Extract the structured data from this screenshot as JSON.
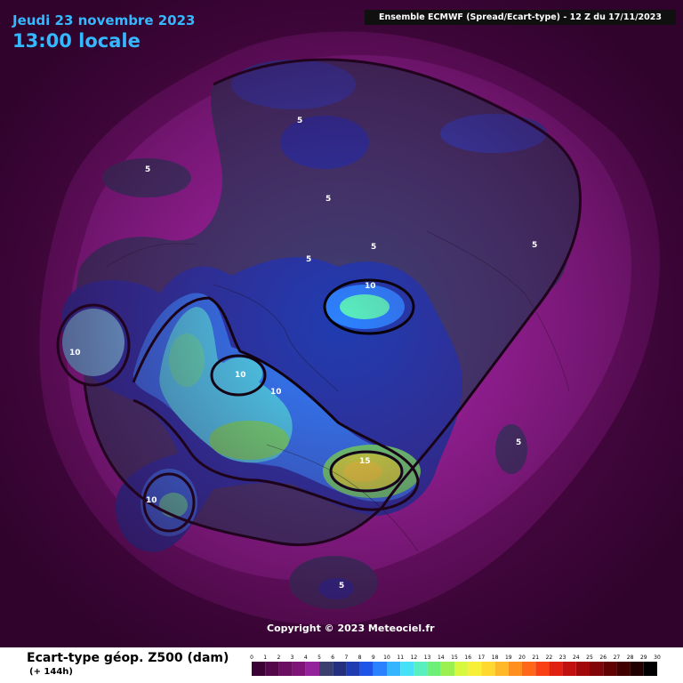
{
  "header": {
    "date": "Jeudi 23 novembre 2023",
    "time": "13:00 locale",
    "source": "Ensemble ECMWF  (Spread/Ecart-type) - 12 Z du 17/11/2023"
  },
  "map": {
    "copyright": "Copyright © 2023 Meteociel.fr",
    "contour_labels": [
      "5",
      "5",
      "5",
      "5",
      "5",
      "5",
      "5",
      "5",
      "10",
      "10",
      "10",
      "10",
      "10",
      "10",
      "15"
    ]
  },
  "footer": {
    "title": "Ecart-type géop. Z500 (dam)",
    "lead_time": "(+ 144h)"
  },
  "scale": {
    "labels": [
      "0",
      "1",
      "2",
      "3",
      "4",
      "5",
      "6",
      "7",
      "8",
      "9",
      "10",
      "11",
      "12",
      "13",
      "14",
      "15",
      "16",
      "17",
      "18",
      "19",
      "20",
      "21",
      "22",
      "23",
      "24",
      "25",
      "26",
      "27",
      "28",
      "29",
      "30"
    ],
    "colors": [
      "#3a0235",
      "#520849",
      "#6a0f62",
      "#7e1478",
      "#94229a",
      "#3a3f6e",
      "#24307e",
      "#1f3cb0",
      "#1e55e8",
      "#2b82ff",
      "#34b6ff",
      "#46e0f8",
      "#58f0c0",
      "#6ef078",
      "#9cf050",
      "#d6f83e",
      "#f6f038",
      "#ffd830",
      "#ffb828",
      "#ff9020",
      "#ff6818",
      "#f84014",
      "#e02010",
      "#c01010",
      "#a0080c",
      "#800408",
      "#600204",
      "#400000",
      "#200000",
      "#000000"
    ]
  }
}
